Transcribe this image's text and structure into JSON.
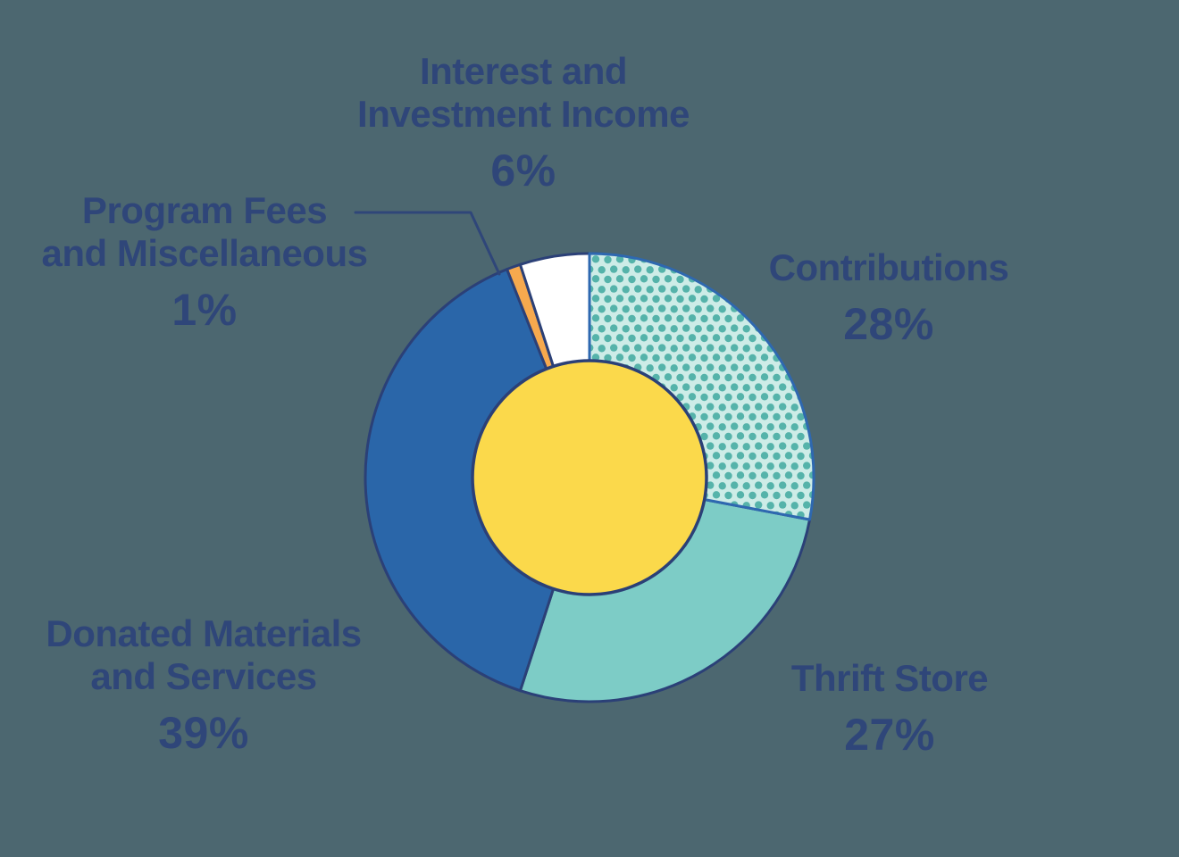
{
  "colors": {
    "background": "#4C6770",
    "text": "#2F4679",
    "outline": "#2B4077"
  },
  "chart_data": {
    "type": "pie",
    "donut": true,
    "title": "",
    "direction": "clockwise",
    "start_angle_deg": 0,
    "categories": [
      "Contributions",
      "Thrift Store",
      "Donated Materials and Services",
      "Program Fees and Miscellaneous",
      "Interest and Investment Income"
    ],
    "values": [
      28,
      27,
      39,
      1,
      6
    ],
    "segments": [
      {
        "label": "Contributions",
        "value": 28,
        "display": "28%",
        "fill": "pattern-dots",
        "stroke": "#2E68B0"
      },
      {
        "label": "Thrift Store",
        "value": 27,
        "display": "27%",
        "fill": "#7DCCC6",
        "stroke": "#2B4077"
      },
      {
        "label": "Donated Materials and Services",
        "value": 39,
        "display": "39%",
        "fill": "#2A66A9",
        "stroke": "#2B4077"
      },
      {
        "label": "Program Fees and Miscellaneous",
        "value": 1,
        "display": "1%",
        "fill": "#F6A94E",
        "stroke": "#2B4077"
      },
      {
        "label": "Interest and Investment Income",
        "value": 6,
        "display": "6%",
        "fill": "#FFFFFF",
        "stroke": "#2B4077"
      }
    ],
    "pattern": {
      "name": "teal-dots",
      "bg": "#CDECE7",
      "dot": "#55B3AA"
    },
    "hole_color": "#FBD94B",
    "legend_position": "labels-around-chart"
  },
  "labels": {
    "interest": {
      "line1": "Interest and",
      "line2": "Investment Income",
      "pct": "6%"
    },
    "program": {
      "line1": "Program Fees",
      "line2": "and Miscellaneous",
      "pct": "1%"
    },
    "contributions": {
      "line1": "Contributions",
      "pct": "28%"
    },
    "thrift": {
      "line1": "Thrift Store",
      "pct": "27%"
    },
    "donated": {
      "line1": "Donated Materials",
      "line2": "and Services",
      "pct": "39%"
    }
  }
}
